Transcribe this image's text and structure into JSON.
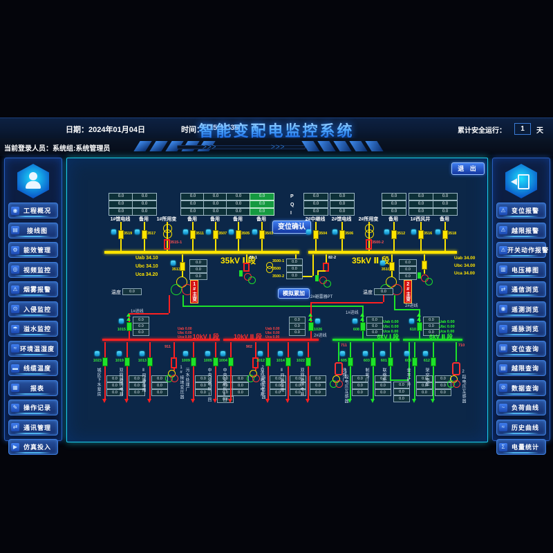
{
  "colors": {
    "accent": "#1ad0f0",
    "bus_35kv": "#ffe400",
    "bus_10kv": "#ff2020",
    "bus_6kv": "#1de22a"
  },
  "header": {
    "date": "日期：2024年01月04日",
    "time_label": "时间：",
    "time_value": "15:11:36",
    "title": "智能变配电监控系统",
    "safe_run_label": "累计安全运行：",
    "safe_run_value": "1",
    "safe_run_unit": "天"
  },
  "subheader": {
    "login": "当前登录人员：系统组:系统管理员"
  },
  "left_sidebar": {
    "items": [
      {
        "label": "工程概况",
        "icon": "◉"
      },
      {
        "label": "接线图",
        "icon": "▤"
      },
      {
        "label": "能效管理",
        "icon": "⚙"
      },
      {
        "label": "视频监控",
        "icon": "◎"
      },
      {
        "label": "烟雾报警",
        "icon": "⚠"
      },
      {
        "label": "入侵监控",
        "icon": "⊙"
      },
      {
        "label": "溢水监控",
        "icon": "☂"
      },
      {
        "label": "环境温湿度",
        "icon": "≈"
      },
      {
        "label": "线缆温度",
        "icon": "▬"
      },
      {
        "label": "报表",
        "icon": "▦"
      },
      {
        "label": "操作记录",
        "icon": "✎"
      },
      {
        "label": "通讯管理",
        "icon": "⇄"
      },
      {
        "label": "仿真投入",
        "icon": "▶"
      }
    ]
  },
  "right_sidebar": {
    "items": [
      {
        "label": "变位报警",
        "icon": "⚠"
      },
      {
        "label": "越限报警",
        "icon": "⚠"
      },
      {
        "label": "开关动作报警",
        "icon": "⚠"
      },
      {
        "label": "电压棒图",
        "icon": "▥"
      },
      {
        "label": "通信浏览",
        "icon": "⇄"
      },
      {
        "label": "遥测浏览",
        "icon": "◉"
      },
      {
        "label": "遥脉浏览",
        "icon": "≈"
      },
      {
        "label": "变位查询",
        "icon": "▤"
      },
      {
        "label": "越限查询",
        "icon": "▤"
      },
      {
        "label": "数据查询",
        "icon": "⊘"
      },
      {
        "label": "负荷曲线",
        "icon": "~"
      },
      {
        "label": "历史曲线",
        "icon": "≈"
      },
      {
        "label": "电量统计",
        "icon": "Σ"
      }
    ]
  },
  "diagram": {
    "exit": "退 出",
    "confirm": "变位确认",
    "simulate": "模拟累加",
    "pqi": [
      "P",
      "Q",
      "I"
    ],
    "val": "0.0",
    "temp_label": "温度",
    "bus35i": "35kV Ⅰ 段",
    "bus35ii": "35kV Ⅱ 段",
    "bus10i": "10kV Ⅰ 段",
    "bus10ii": "10kV Ⅱ 段",
    "bus6i": "6kV Ⅰ 段",
    "bus6ii": "6kV Ⅱ 段",
    "v35i": [
      "Uab 34.10",
      "Ubc 34.10",
      "Uca 34.20"
    ],
    "v35ii": [
      "Uab 34.00",
      "Ubc 34.00",
      "Uca 34.00"
    ],
    "v10": [
      "Uab 0.00",
      "Ubc 0.00",
      "Uca 0.00"
    ],
    "v6": [
      "Uab 0.00",
      "Ubc 0.00",
      "Uca 0.00"
    ],
    "bays35i": [
      {
        "label": "1#馈电线",
        "num": "3519"
      },
      {
        "label": "备用",
        "num": "3517"
      },
      {
        "label": "1#所用变",
        "num": "3515-1",
        "type": "tf"
      },
      {
        "label": "备用",
        "num": "3511"
      },
      {
        "label": "备用",
        "num": "3507"
      },
      {
        "label": "备用",
        "num": "3505"
      },
      {
        "label": "备用",
        "num": "3503",
        "green": true
      }
    ],
    "bays35ii": [
      {
        "label": "2#中继线",
        "num": "3504"
      },
      {
        "label": "2#馈电线",
        "num": "3506"
      },
      {
        "label": "2#所用变",
        "num": "3500-2",
        "type": "tf"
      },
      {
        "label": "备用",
        "num": "3512"
      },
      {
        "label": "1#西风井",
        "num": "3516"
      },
      {
        "label": "备用",
        "num": "3518"
      }
    ],
    "tf1": {
      "name": "1#主变",
      "num": "3513",
      "temp": "0.0"
    },
    "tf2": {
      "name": "2#主变",
      "num": "3510",
      "temp": "0.0"
    },
    "pt35i": "81-1",
    "pt35ii": "82-2",
    "pt35ii_label": "2#避雷器PT",
    "tie": [
      "3500-1",
      "3500",
      "3500-2"
    ],
    "inc10i": {
      "name": "1#进线",
      "num": "1015"
    },
    "inc10ii": {
      "name": "2#进线",
      "num": "1026"
    },
    "inc6i": {
      "name": "1#进线",
      "num": "608"
    },
    "inc6ii": {
      "name": "2#进线",
      "num": "610"
    },
    "f10i": [
      {
        "num": "1023",
        "label": "城区下水泵房"
      },
      {
        "num": "1019",
        "label": "双回路供电井"
      },
      {
        "num": "1013",
        "label": "Ⅱ回路备用"
      },
      {
        "num": "911",
        "label": "1#接地变压器",
        "type": "gt"
      },
      {
        "num": "1009",
        "label": "污水处理厂"
      },
      {
        "num": "1005",
        "label": "中央变电所Ⅰ回",
        "boxes": 4
      }
    ],
    "f10ii": [
      {
        "num": "1004",
        "label": "中央变电所Ⅱ回"
      },
      {
        "num": "902",
        "label": "2#接地变压器",
        "type": "gt"
      },
      {
        "num": "1012",
        "label": "双回路供电井"
      },
      {
        "num": "1014",
        "label": "Ⅱ回路备用"
      },
      {
        "num": "1022",
        "label": "双回路供电井"
      }
    ],
    "f6i": [
      {
        "num": "711",
        "label": "1段电压互感器",
        "type": "pt"
      },
      {
        "num": "605",
        "label": "洗煤厂"
      },
      {
        "num": "603",
        "label": "制氧厂"
      },
      {
        "num": "601",
        "label": "联络柜",
        "type": "tie"
      }
    ],
    "f6ii": [
      {
        "num": "606",
        "label": "金丰矿井"
      },
      {
        "num": "612",
        "label": "架空电车"
      },
      {
        "num": "710",
        "label": "2段电压互感器",
        "type": "pt"
      }
    ]
  }
}
